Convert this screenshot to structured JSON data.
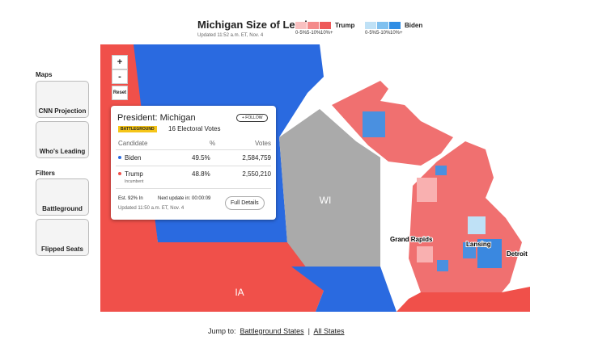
{
  "header": {
    "title": "Michigan Size of Lead",
    "subtitle": "Updated 11:52 a.m. ET, Nov. 4"
  },
  "legend": [
    {
      "name": "Trump",
      "bins": [
        "0-5%",
        "5-10%",
        "10%+"
      ]
    },
    {
      "name": "Biden",
      "bins": [
        "0-5%",
        "5-10%",
        "10%+"
      ]
    }
  ],
  "controls": {
    "zoom_in": "+",
    "zoom_out": "-",
    "reset": "Reset"
  },
  "sidebar": {
    "maps_heading": "Maps",
    "maps": [
      "CNN Projection",
      "Who's Leading"
    ],
    "filters_heading": "Filters",
    "filters": [
      "Battleground",
      "Flipped Seats"
    ]
  },
  "popup": {
    "title": "President: Michigan",
    "follow": "+ FOLLOW",
    "badge": "BATTLEGROUND",
    "electoral": "16 Electoral Votes",
    "columns": [
      "Candidate",
      "%",
      "Votes"
    ],
    "rows": [
      {
        "name": "Biden",
        "pct": "49.5%",
        "votes": "2,584,759"
      },
      {
        "name": "Trump",
        "note": "Incumbent",
        "pct": "48.8%",
        "votes": "2,550,210"
      }
    ],
    "est": "Est. 92% In",
    "next_update": "Next update in: 00:00:09",
    "updated": "Updated 11:50 a.m. ET, Nov. 4",
    "details": "Full Details"
  },
  "map_labels": {
    "wi": "WI",
    "ia": "IA",
    "cities": [
      "Grand Rapids",
      "Lansing",
      "Detroit"
    ]
  },
  "footer": {
    "jump": "Jump to:",
    "links": [
      "Battleground States",
      "All States"
    ],
    "separator": "|"
  }
}
